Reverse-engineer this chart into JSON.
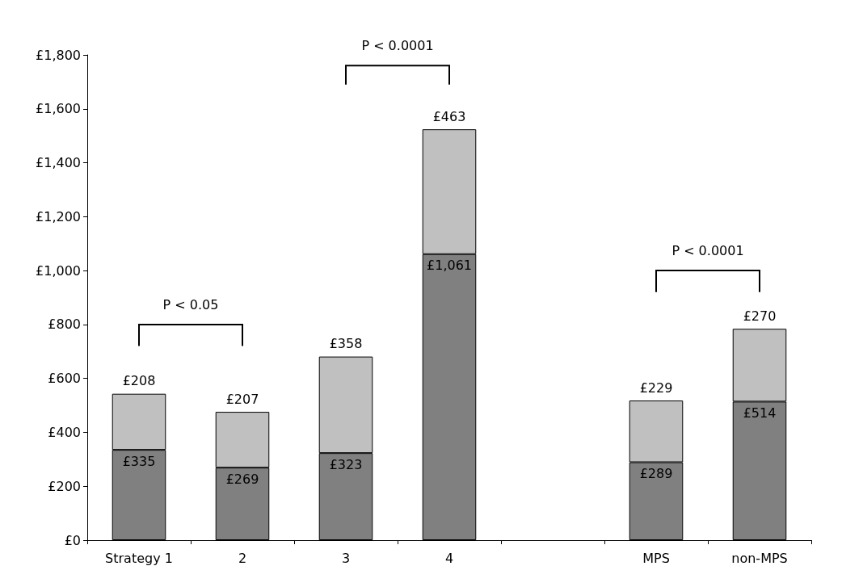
{
  "chart_data": {
    "type": "bar",
    "stacked": true,
    "categories": [
      "Strategy 1",
      "2",
      "3",
      "4",
      null,
      "MPS",
      "non-MPS"
    ],
    "series": [
      {
        "color": "#808080",
        "values": [
          335,
          269,
          323,
          1061,
          null,
          289,
          514
        ],
        "value_labels": [
          "£335",
          "£269",
          "£323",
          "£1,061",
          null,
          "£289",
          "£514"
        ]
      },
      {
        "color": "#c0c0c0",
        "values": [
          208,
          207,
          358,
          463,
          null,
          229,
          270
        ],
        "value_labels": [
          "£208",
          "£207",
          "£358",
          "£463",
          null,
          "£229",
          "£270"
        ]
      }
    ],
    "ylim": [
      0,
      1800
    ],
    "yticks": [
      {
        "value": 0,
        "label": "£0"
      },
      {
        "value": 200,
        "label": "£200"
      },
      {
        "value": 400,
        "label": "£400"
      },
      {
        "value": 600,
        "label": "£600"
      },
      {
        "value": 800,
        "label": "£800"
      },
      {
        "value": 1000,
        "label": "£1,000"
      },
      {
        "value": 1200,
        "label": "£1,200"
      },
      {
        "value": 1400,
        "label": "£1,400"
      },
      {
        "value": 1600,
        "label": "£1,600"
      },
      {
        "value": 1800,
        "label": "£1,800"
      }
    ],
    "grid": false,
    "annotations": [
      "P < 0.05",
      "P < 0.0001",
      "P < 0.0001"
    ]
  }
}
